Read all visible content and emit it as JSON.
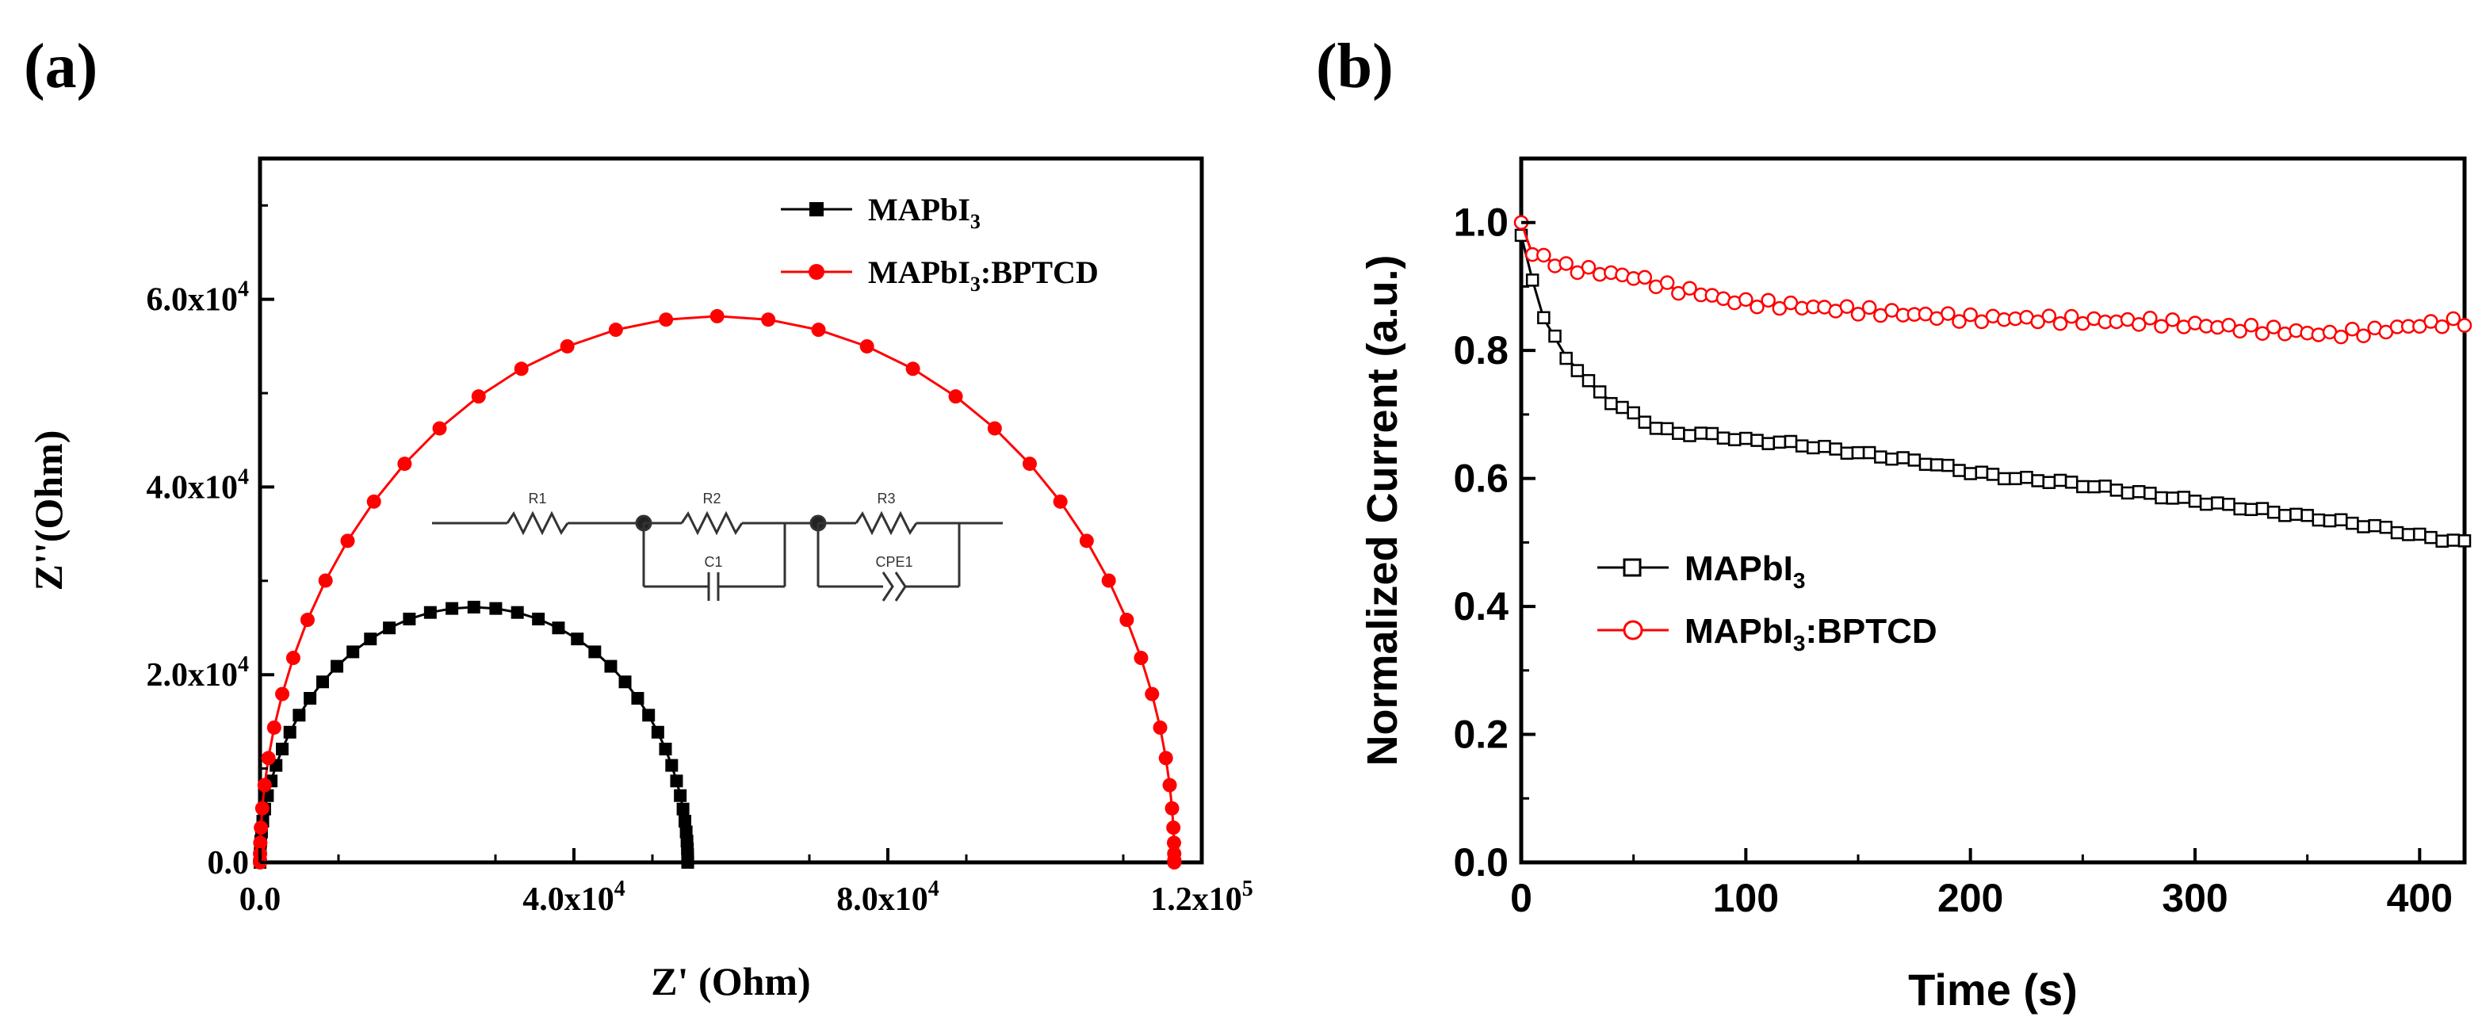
{
  "panels": {
    "a": {
      "label": "(a)"
    },
    "b": {
      "label": "(b)"
    }
  },
  "chart_data": [
    {
      "type": "scatter",
      "panel": "a",
      "xlabel": "Z' (Ohm)",
      "ylabel": "Z''(Ohm)",
      "xlim": [
        0,
        120000
      ],
      "ylim": [
        0,
        75000
      ],
      "x_ticks": [
        {
          "value": 0,
          "label": "0.0"
        },
        {
          "value": 40000,
          "base": "4.0x10",
          "exp": "4"
        },
        {
          "value": 80000,
          "base": "8.0x10",
          "exp": "4"
        },
        {
          "value": 120000,
          "base": "1.2x10",
          "exp": "5"
        }
      ],
      "y_ticks": [
        {
          "value": 0,
          "label": "0.0"
        },
        {
          "value": 20000,
          "base": "2.0x10",
          "exp": "4"
        },
        {
          "value": 40000,
          "base": "4.0x10",
          "exp": "4"
        },
        {
          "value": 60000,
          "base": "6.0x10",
          "exp": "4"
        }
      ],
      "legend_position": "top-right",
      "series": [
        {
          "name": "MAPbI3",
          "name_main": "MAPbI",
          "name_sub": "3",
          "name_rest": "",
          "color": "#000000",
          "marker": "square",
          "R_ohm": 54500,
          "peak": {
            "x": 27250,
            "y": 27200
          },
          "n_points": 48
        },
        {
          "name": "MAPbI3:BPTCD",
          "name_main": "MAPbI",
          "name_sub": "3",
          "name_rest": ":BPTCD",
          "color": "#ff0000",
          "marker": "circle",
          "R_ohm": 116500,
          "peak": {
            "x": 58250,
            "y": 58200
          },
          "n_points": 44
        }
      ],
      "inset_circuit": {
        "components": [
          "R1",
          "R2",
          "C1",
          "R3",
          "CPE1"
        ]
      }
    },
    {
      "type": "line",
      "panel": "b",
      "xlabel": "Time (s)",
      "ylabel": "Normalized Current (a.u.)",
      "xlim": [
        0,
        420
      ],
      "ylim": [
        0,
        1.1
      ],
      "x_ticks": [
        0,
        100,
        200,
        300,
        400
      ],
      "y_ticks": [
        "0.0",
        "0.2",
        "0.4",
        "0.6",
        "0.8",
        "1.0"
      ],
      "legend_position": "center-left",
      "series": [
        {
          "name": "MAPbI3",
          "name_main": "MAPbI",
          "name_sub": "3",
          "name_rest": "",
          "color": "#000000",
          "marker": "open-square",
          "x": [
            0,
            5,
            10,
            20,
            30,
            40,
            50,
            60,
            70,
            80,
            90,
            100,
            120,
            140,
            160,
            180,
            200,
            220,
            240,
            260,
            280,
            300,
            320,
            340,
            360,
            380,
            400,
            420
          ],
          "y": [
            0.98,
            0.91,
            0.85,
            0.79,
            0.75,
            0.72,
            0.7,
            0.68,
            0.67,
            0.67,
            0.665,
            0.66,
            0.655,
            0.645,
            0.635,
            0.625,
            0.61,
            0.6,
            0.595,
            0.585,
            0.575,
            0.565,
            0.555,
            0.545,
            0.535,
            0.525,
            0.51,
            0.5
          ]
        },
        {
          "name": "MAPbI3:BPTCD",
          "name_main": "MAPbI",
          "name_sub": "3",
          "name_rest": ":BPTCD",
          "color": "#ff0000",
          "marker": "open-circle",
          "x": [
            0,
            5,
            10,
            20,
            30,
            40,
            50,
            60,
            70,
            80,
            90,
            100,
            120,
            140,
            160,
            180,
            200,
            220,
            240,
            260,
            280,
            300,
            320,
            340,
            360,
            380,
            400,
            420
          ],
          "y": [
            1.0,
            0.95,
            0.945,
            0.93,
            0.925,
            0.92,
            0.915,
            0.905,
            0.895,
            0.89,
            0.88,
            0.875,
            0.87,
            0.865,
            0.86,
            0.855,
            0.85,
            0.85,
            0.848,
            0.846,
            0.845,
            0.84,
            0.835,
            0.83,
            0.825,
            0.83,
            0.84,
            0.845
          ]
        }
      ]
    }
  ]
}
